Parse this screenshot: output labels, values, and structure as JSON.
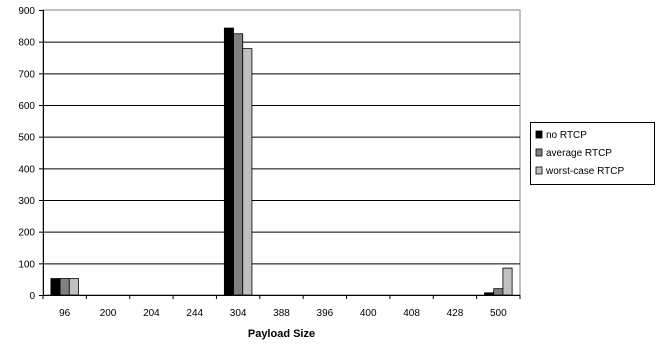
{
  "chart_data": {
    "type": "bar",
    "title": "",
    "xlabel": "Payload Size",
    "ylabel": "",
    "ylim": [
      0,
      900
    ],
    "yticks": [
      0,
      100,
      200,
      300,
      400,
      500,
      600,
      700,
      800,
      900
    ],
    "grid": true,
    "legend_position": "right",
    "categories": [
      "96",
      "200",
      "204",
      "244",
      "304",
      "388",
      "396",
      "400",
      "408",
      "428",
      "500"
    ],
    "series": [
      {
        "name": "no RTCP",
        "color": "#000000",
        "values": [
          52,
          0,
          0,
          0,
          843,
          0,
          0,
          0,
          0,
          0,
          7
        ]
      },
      {
        "name": "average RTCP",
        "color": "#808080",
        "values": [
          52,
          0,
          0,
          0,
          825,
          0,
          0,
          0,
          0,
          0,
          20
        ]
      },
      {
        "name": "worst-case RTCP",
        "color": "#c0c0c0",
        "values": [
          52,
          0,
          0,
          0,
          778,
          0,
          0,
          0,
          0,
          0,
          85
        ]
      }
    ]
  }
}
